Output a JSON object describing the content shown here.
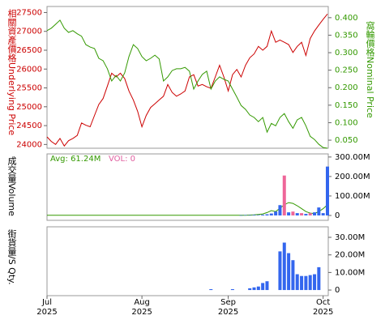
{
  "chart_data": [
    {
      "type": "line",
      "y_label": "相關資產價格Underlying Price",
      "y2_label": "窩輪價格Nominal Price",
      "ylim": [
        23900,
        27660
      ],
      "yticks": [
        24000,
        24500,
        25000,
        25500,
        26000,
        26500,
        27000,
        27500
      ],
      "y2lim": [
        0.027,
        0.432
      ],
      "y2ticks": [
        {
          "value": 0.05,
          "label": "0.050"
        },
        {
          "value": 0.1,
          "label": "0.100"
        },
        {
          "value": 0.15,
          "label": "0.150"
        },
        {
          "value": 0.2,
          "label": "0.200"
        },
        {
          "value": 0.25,
          "label": "0.250"
        },
        {
          "value": 0.3,
          "label": "0.300"
        },
        {
          "value": 0.35,
          "label": "0.350"
        },
        {
          "value": 0.4,
          "label": "0.400"
        }
      ],
      "y_color": "#cc0000",
      "y2_color": "#339900",
      "series": [
        {
          "color": "#cc0000",
          "axis": "y",
          "values": [
            24200,
            24080,
            24000,
            24160,
            23960,
            24100,
            24160,
            24240,
            24570,
            24510,
            24470,
            24770,
            25060,
            25220,
            25550,
            25890,
            25790,
            25890,
            25750,
            25420,
            25180,
            24880,
            24470,
            24770,
            24980,
            25080,
            25180,
            25280,
            25590,
            25380,
            25280,
            25340,
            25420,
            25790,
            25850,
            25550,
            25590,
            25530,
            25490,
            25790,
            26100,
            25790,
            25420,
            25850,
            25990,
            25790,
            26100,
            26300,
            26400,
            26600,
            26500,
            26600,
            27010,
            26710,
            26770,
            26710,
            26650,
            26440,
            26600,
            26710,
            26360,
            26810,
            27010,
            27170,
            27320,
            27460
          ]
        },
        {
          "color": "#339900",
          "axis": "y2",
          "values": [
            0.363,
            0.37,
            0.381,
            0.393,
            0.37,
            0.358,
            0.363,
            0.354,
            0.347,
            0.323,
            0.316,
            0.312,
            0.284,
            0.277,
            0.254,
            0.219,
            0.235,
            0.219,
            0.242,
            0.289,
            0.323,
            0.312,
            0.289,
            0.277,
            0.284,
            0.293,
            0.282,
            0.219,
            0.231,
            0.249,
            0.254,
            0.254,
            0.258,
            0.247,
            0.196,
            0.219,
            0.238,
            0.247,
            0.196,
            0.219,
            0.231,
            0.224,
            0.219,
            0.196,
            0.173,
            0.149,
            0.138,
            0.122,
            0.115,
            0.103,
            0.115,
            0.073,
            0.098,
            0.091,
            0.115,
            0.126,
            0.103,
            0.084,
            0.108,
            0.115,
            0.091,
            0.061,
            0.052,
            0.038,
            0.029,
            0.027
          ]
        }
      ]
    },
    {
      "type": "bar",
      "y_label": "成交量Volume",
      "avg_label": "Avg: 61.24M",
      "avg_color": "#339900",
      "vol_label": "VOL: 0",
      "vol_color": "#e060a0",
      "ylim": [
        -25000000,
        316000000
      ],
      "yticks": [
        0,
        {
          "value": 100000000,
          "label": "100.00M"
        },
        {
          "value": 200000000,
          "label": "200.00M"
        },
        {
          "value": 300000000,
          "label": "300.00M"
        }
      ],
      "series": [
        {
          "color": "#3366ee",
          "values": [
            null,
            null,
            null,
            null,
            null,
            null,
            null,
            null,
            null,
            null,
            null,
            null,
            null,
            null,
            null,
            null,
            null,
            null,
            null,
            null,
            null,
            null,
            null,
            null,
            null,
            null,
            null,
            null,
            null,
            null,
            null,
            null,
            null,
            null,
            null,
            null,
            null,
            null,
            null,
            null,
            null,
            null,
            null,
            null,
            null,
            1000000,
            2000000,
            1500000,
            3000000,
            2000000,
            4000000,
            6000000,
            10000000,
            20000000,
            53000000,
            null,
            16000000,
            null,
            12000000,
            null,
            8000000,
            null,
            16000000,
            41000000,
            12000000,
            251000000
          ]
        },
        {
          "color": "#ee6699",
          "values": [
            null,
            null,
            null,
            null,
            null,
            null,
            null,
            null,
            null,
            null,
            null,
            null,
            null,
            null,
            null,
            null,
            null,
            null,
            null,
            null,
            null,
            null,
            null,
            null,
            null,
            null,
            null,
            null,
            null,
            null,
            null,
            null,
            null,
            null,
            null,
            null,
            null,
            null,
            null,
            null,
            null,
            null,
            null,
            null,
            null,
            null,
            null,
            null,
            null,
            null,
            null,
            null,
            null,
            null,
            null,
            205000000,
            null,
            20000000,
            null,
            12000000,
            null,
            12000000,
            null,
            null,
            null,
            null
          ]
        }
      ],
      "line": {
        "color": "#339900",
        "values": [
          1000000,
          1000000,
          1000000,
          1000000,
          1000000,
          1000000,
          1000000,
          1000000,
          1000000,
          1000000,
          1000000,
          1000000,
          1000000,
          1000000,
          1000000,
          1000000,
          1000000,
          1000000,
          1000000,
          1000000,
          1000000,
          1000000,
          1000000,
          1000000,
          1000000,
          1000000,
          1000000,
          1000000,
          1000000,
          1000000,
          1000000,
          1000000,
          1000000,
          1000000,
          1000000,
          1000000,
          1000000,
          1000000,
          1000000,
          1000000,
          1000000,
          1000000,
          1000000,
          1000000,
          1000000,
          1000000,
          1000000,
          2000000,
          3000000,
          5000000,
          8000000,
          15000000,
          25000000,
          20000000,
          37000000,
          55000000,
          66000000,
          62000000,
          50000000,
          35000000,
          20000000,
          12000000,
          10000000,
          20000000,
          35000000,
          55000000
        ]
      }
    },
    {
      "type": "bar",
      "y_label": "街貨量/S Qty.",
      "ylim": [
        -3200000,
        36000000
      ],
      "yticks": [
        0,
        {
          "value": 10000000,
          "label": "10.00M"
        },
        {
          "value": 20000000,
          "label": "20.00M"
        },
        {
          "value": 30000000,
          "label": "30.00M"
        }
      ],
      "categories": [
        "Jul\n2025",
        null,
        null,
        null,
        null,
        null,
        null,
        null,
        null,
        null,
        null,
        null,
        null,
        null,
        null,
        null,
        null,
        null,
        null,
        null,
        null,
        null,
        "Aug\n2025",
        null,
        null,
        null,
        null,
        null,
        null,
        null,
        null,
        null,
        null,
        null,
        null,
        null,
        null,
        null,
        null,
        null,
        null,
        null,
        "Sep\n2025",
        null,
        null,
        null,
        null,
        null,
        null,
        null,
        null,
        null,
        null,
        null,
        null,
        null,
        null,
        null,
        null,
        null,
        null,
        null,
        null,
        null,
        "Oct\n2025",
        null
      ],
      "series": [
        {
          "color": "#3366ee",
          "values": [
            null,
            null,
            null,
            null,
            null,
            null,
            null,
            null,
            null,
            null,
            null,
            null,
            null,
            null,
            null,
            null,
            null,
            null,
            null,
            null,
            null,
            null,
            null,
            null,
            null,
            null,
            null,
            null,
            null,
            null,
            null,
            null,
            null,
            null,
            null,
            null,
            null,
            null,
            500000,
            null,
            null,
            null,
            null,
            500000,
            null,
            null,
            null,
            1000000,
            1500000,
            2000000,
            4000000,
            5000000,
            null,
            null,
            22000000,
            27000000,
            21000000,
            17000000,
            9000000,
            8000000,
            8000000,
            8500000,
            9000000,
            13000000,
            null,
            null
          ]
        }
      ]
    }
  ]
}
